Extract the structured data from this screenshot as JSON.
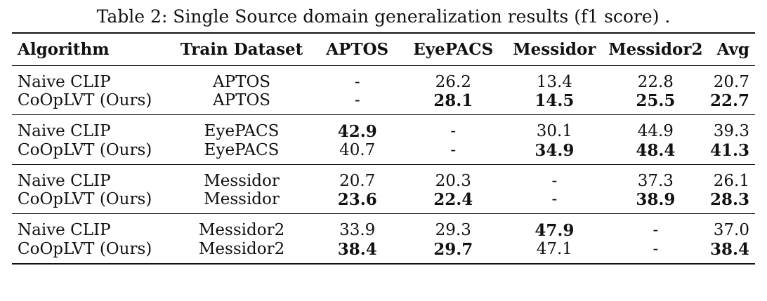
{
  "caption": "Table 2: Single Source domain generalization results (f1 score) .",
  "table": {
    "headers": [
      "Algorithm",
      "Train Dataset",
      "APTOS",
      "EyePACS",
      "Messidor",
      "Messidor2",
      "Avg"
    ],
    "groups": [
      {
        "rows": [
          {
            "algorithm": "Naive CLIP",
            "train": "APTOS",
            "values": [
              "-",
              "26.2",
              "13.4",
              "22.8",
              "20.7"
            ],
            "bold": [
              false,
              false,
              false,
              false,
              false
            ]
          },
          {
            "algorithm": "CoOpLVT (Ours)",
            "train": "APTOS",
            "values": [
              "-",
              "28.1",
              "14.5",
              "25.5",
              "22.7"
            ],
            "bold": [
              false,
              true,
              true,
              true,
              true
            ]
          }
        ]
      },
      {
        "rows": [
          {
            "algorithm": "Naive CLIP",
            "train": "EyePACS",
            "values": [
              "42.9",
              "-",
              "30.1",
              "44.9",
              "39.3"
            ],
            "bold": [
              true,
              false,
              false,
              false,
              false
            ]
          },
          {
            "algorithm": "CoOpLVT (Ours)",
            "train": "EyePACS",
            "values": [
              "40.7",
              "-",
              "34.9",
              "48.4",
              "41.3"
            ],
            "bold": [
              false,
              false,
              true,
              true,
              true
            ]
          }
        ]
      },
      {
        "rows": [
          {
            "algorithm": "Naive CLIP",
            "train": "Messidor",
            "values": [
              "20.7",
              "20.3",
              "-",
              "37.3",
              "26.1"
            ],
            "bold": [
              false,
              false,
              false,
              false,
              false
            ]
          },
          {
            "algorithm": "CoOpLVT (Ours)",
            "train": "Messidor",
            "values": [
              "23.6",
              "22.4",
              "-",
              "38.9",
              "28.3"
            ],
            "bold": [
              true,
              true,
              false,
              true,
              true
            ]
          }
        ]
      },
      {
        "rows": [
          {
            "algorithm": "Naive CLIP",
            "train": "Messidor2",
            "values": [
              "33.9",
              "29.3",
              "47.9",
              "-",
              "37.0"
            ],
            "bold": [
              false,
              false,
              true,
              false,
              false
            ]
          },
          {
            "algorithm": "CoOpLVT (Ours)",
            "train": "Messidor2",
            "values": [
              "38.4",
              "29.7",
              "47.1",
              "-",
              "38.4"
            ],
            "bold": [
              true,
              true,
              false,
              false,
              true
            ]
          }
        ]
      }
    ]
  }
}
